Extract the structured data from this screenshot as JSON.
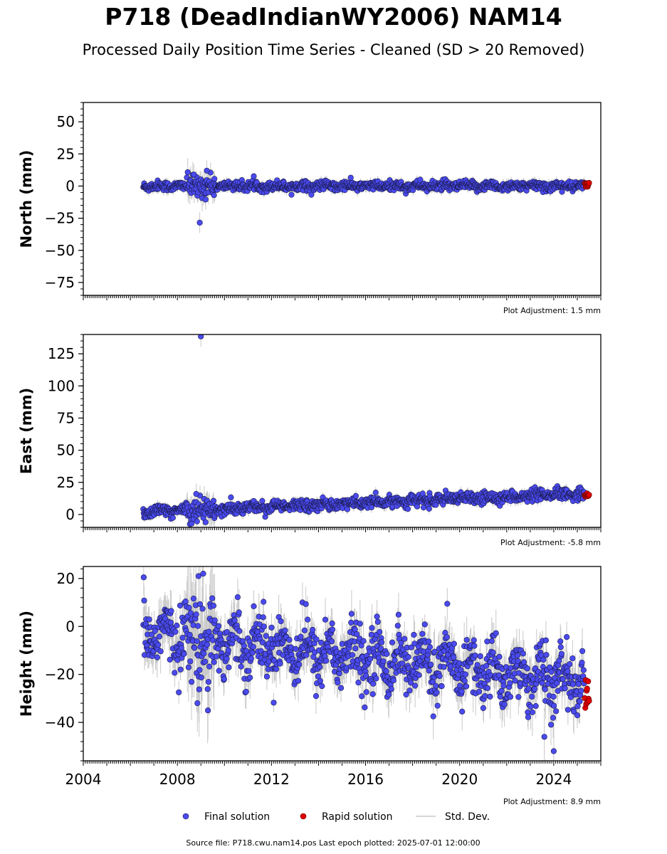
{
  "title": "P718 (DeadIndianWY2006) NAM14",
  "subtitle": "Processed Daily Position Time Series - Cleaned (SD > 20 Removed)",
  "legend": {
    "final": "Final solution",
    "rapid": "Rapid solution",
    "std": "Std. Dev."
  },
  "footer": "Source file: P718.cwu.nam14.pos  Last epoch plotted: 2025-07-01 12:00:00",
  "colors": {
    "final": "#4a4af0",
    "rapid": "#e00000",
    "std": "#c8c8c8",
    "edge": "#1a1a4a"
  },
  "chart_data": [
    {
      "type": "scatter",
      "id": "north",
      "ylabel": "North (mm)",
      "adjustment": "Plot Adjustment: 1.5 mm",
      "xlim": [
        2004,
        2026
      ],
      "ylim": [
        -85,
        65
      ],
      "yticks": [
        50,
        25,
        0,
        -25,
        -50,
        -75
      ],
      "ytick_labels": [
        "50",
        "25",
        "0",
        "−25",
        "−50",
        "−75"
      ],
      "series": [
        {
          "name": "Final solution",
          "role": "final",
          "data_range": [
            2006.55,
            2025.3
          ],
          "baseline": 0,
          "trend": 0.0,
          "scatter_sd": 1.8,
          "notable_points": [
            [
              2008.95,
              -28.5
            ],
            [
              2009.2,
              -10.5
            ],
            [
              2009.25,
              12
            ],
            [
              2008.7,
              9
            ]
          ]
        },
        {
          "name": "Rapid solution",
          "role": "rapid",
          "data_range": [
            2025.32,
            2025.5
          ],
          "baseline": 1
        }
      ]
    },
    {
      "type": "scatter",
      "id": "east",
      "ylabel": "East (mm)",
      "adjustment": "Plot Adjustment: -5.8 mm",
      "xlim": [
        2004,
        2026
      ],
      "ylim": [
        -10,
        140
      ],
      "yticks": [
        125,
        100,
        75,
        50,
        25,
        0
      ],
      "ytick_labels": [
        "125",
        "100",
        "75",
        "50",
        "25",
        "0"
      ],
      "series": [
        {
          "name": "Final solution",
          "role": "final",
          "data_range": [
            2006.55,
            2025.3
          ],
          "baseline": 2,
          "trend": 0.75,
          "scatter_sd": 2.2,
          "notable_points": [
            [
              2009.0,
              138.5
            ],
            [
              2008.8,
              16
            ],
            [
              2009.2,
              -6
            ]
          ]
        },
        {
          "name": "Rapid solution",
          "role": "rapid",
          "data_range": [
            2025.32,
            2025.5
          ],
          "baseline": 15
        }
      ]
    },
    {
      "type": "scatter",
      "id": "height",
      "ylabel": "Height (mm)",
      "adjustment": "Plot Adjustment: 8.9 mm",
      "xlim": [
        2004,
        2026
      ],
      "ylim": [
        -56,
        25
      ],
      "yticks": [
        20,
        0,
        -20,
        -40
      ],
      "ytick_labels": [
        "20",
        "0",
        "−20",
        "−40"
      ],
      "xticks": [
        2004,
        2008,
        2012,
        2016,
        2020,
        2024
      ],
      "xtick_labels": [
        "2004",
        "2008",
        "2012",
        "2016",
        "2020",
        "2024"
      ],
      "series": [
        {
          "name": "Final solution",
          "role": "final",
          "data_range": [
            2006.55,
            2025.3
          ],
          "baseline": -2,
          "trend": -1.15,
          "scatter_sd": 6,
          "notable_points": [
            [
              2009.1,
              22
            ],
            [
              2008.9,
              21
            ],
            [
              2024.0,
              -52
            ],
            [
              2023.6,
              -46
            ],
            [
              2009.3,
              -35
            ],
            [
              2008.85,
              -32
            ]
          ]
        },
        {
          "name": "Rapid solution",
          "role": "rapid",
          "data_range": [
            2025.32,
            2025.5
          ],
          "baseline": -28
        }
      ]
    }
  ]
}
